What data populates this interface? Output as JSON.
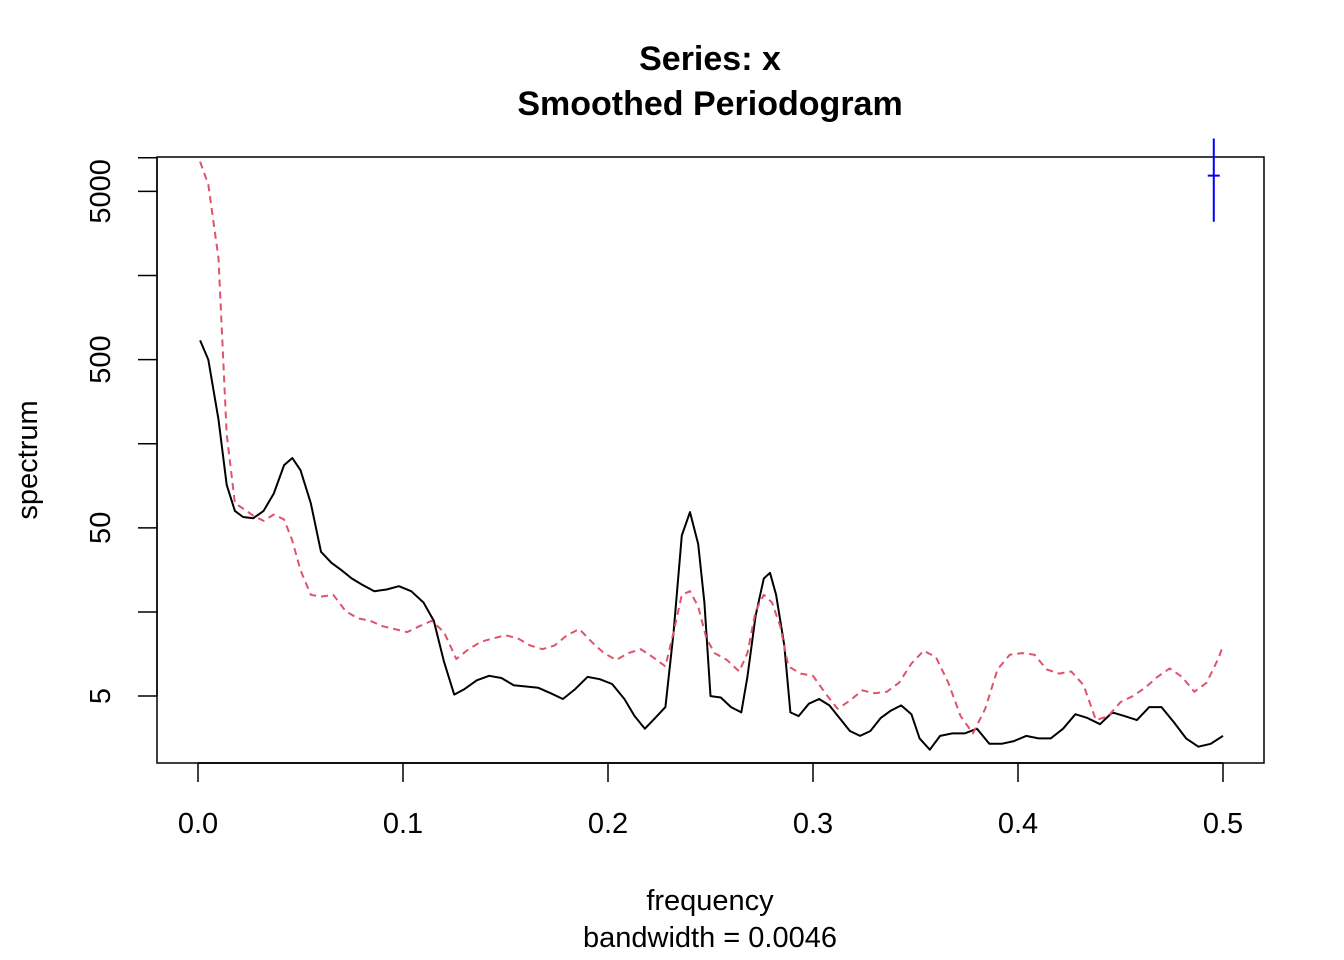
{
  "chart_data": {
    "type": "line",
    "title": "Series: x",
    "subtitle": "Smoothed Periodogram",
    "xlabel": "frequency",
    "sublabel": "bandwidth = 0.0046",
    "ylabel": "spectrum",
    "y_scale": "log",
    "xlim": [
      -0.02,
      0.52
    ],
    "ylim": [
      2.0,
      8000
    ],
    "x_ticks": [
      0.0,
      0.1,
      0.2,
      0.3,
      0.4,
      0.5
    ],
    "x_tick_labels": [
      "0.0",
      "0.1",
      "0.2",
      "0.3",
      "0.4",
      "0.5"
    ],
    "y_major_ticks": [
      5,
      50,
      500,
      5000
    ],
    "y_tick_labels": [
      "5",
      "50",
      "500",
      "5000"
    ],
    "y_minor_ticks": [
      15.8,
      158,
      1580
    ],
    "series": [
      {
        "color": "#000000",
        "dash": "solid",
        "points": [
          [
            0.001,
            650
          ],
          [
            0.005,
            500
          ],
          [
            0.01,
            220
          ],
          [
            0.014,
            90
          ],
          [
            0.018,
            63
          ],
          [
            0.022,
            58
          ],
          [
            0.027,
            57
          ],
          [
            0.032,
            63
          ],
          [
            0.037,
            80
          ],
          [
            0.042,
            118
          ],
          [
            0.046,
            130
          ],
          [
            0.05,
            110
          ],
          [
            0.055,
            70
          ],
          [
            0.06,
            36
          ],
          [
            0.065,
            31
          ],
          [
            0.07,
            28
          ],
          [
            0.075,
            25
          ],
          [
            0.08,
            23
          ],
          [
            0.086,
            21
          ],
          [
            0.092,
            21.5
          ],
          [
            0.098,
            22.5
          ],
          [
            0.104,
            21
          ],
          [
            0.11,
            18
          ],
          [
            0.115,
            14
          ],
          [
            0.12,
            8
          ],
          [
            0.125,
            5.1
          ],
          [
            0.13,
            5.5
          ],
          [
            0.136,
            6.2
          ],
          [
            0.142,
            6.6
          ],
          [
            0.148,
            6.4
          ],
          [
            0.154,
            5.8
          ],
          [
            0.16,
            5.7
          ],
          [
            0.166,
            5.6
          ],
          [
            0.172,
            5.2
          ],
          [
            0.178,
            4.8
          ],
          [
            0.184,
            5.5
          ],
          [
            0.19,
            6.5
          ],
          [
            0.196,
            6.3
          ],
          [
            0.202,
            5.9
          ],
          [
            0.208,
            4.8
          ],
          [
            0.213,
            3.8
          ],
          [
            0.218,
            3.2
          ],
          [
            0.223,
            3.7
          ],
          [
            0.228,
            4.3
          ],
          [
            0.232,
            12
          ],
          [
            0.236,
            45
          ],
          [
            0.24,
            62
          ],
          [
            0.244,
            40
          ],
          [
            0.247,
            18
          ],
          [
            0.25,
            5.0
          ],
          [
            0.255,
            4.9
          ],
          [
            0.26,
            4.3
          ],
          [
            0.265,
            4.0
          ],
          [
            0.268,
            6.5
          ],
          [
            0.272,
            15
          ],
          [
            0.276,
            25
          ],
          [
            0.279,
            27
          ],
          [
            0.282,
            20
          ],
          [
            0.286,
            10
          ],
          [
            0.289,
            4.0
          ],
          [
            0.293,
            3.8
          ],
          [
            0.298,
            4.5
          ],
          [
            0.303,
            4.8
          ],
          [
            0.308,
            4.4
          ],
          [
            0.313,
            3.7
          ],
          [
            0.318,
            3.1
          ],
          [
            0.323,
            2.9
          ],
          [
            0.328,
            3.1
          ],
          [
            0.333,
            3.7
          ],
          [
            0.338,
            4.1
          ],
          [
            0.343,
            4.4
          ],
          [
            0.348,
            3.9
          ],
          [
            0.352,
            2.8
          ],
          [
            0.357,
            2.4
          ],
          [
            0.362,
            2.9
          ],
          [
            0.368,
            3.0
          ],
          [
            0.374,
            3.0
          ],
          [
            0.38,
            3.2
          ],
          [
            0.386,
            2.6
          ],
          [
            0.392,
            2.6
          ],
          [
            0.398,
            2.7
          ],
          [
            0.404,
            2.9
          ],
          [
            0.41,
            2.8
          ],
          [
            0.416,
            2.8
          ],
          [
            0.422,
            3.2
          ],
          [
            0.428,
            3.9
          ],
          [
            0.434,
            3.7
          ],
          [
            0.44,
            3.4
          ],
          [
            0.446,
            4.0
          ],
          [
            0.452,
            3.8
          ],
          [
            0.458,
            3.6
          ],
          [
            0.464,
            4.3
          ],
          [
            0.47,
            4.3
          ],
          [
            0.476,
            3.5
          ],
          [
            0.482,
            2.8
          ],
          [
            0.488,
            2.5
          ],
          [
            0.494,
            2.6
          ],
          [
            0.5,
            2.9
          ]
        ]
      },
      {
        "color": "#df536b",
        "dash": "dashed",
        "points": [
          [
            0.001,
            7500
          ],
          [
            0.005,
            5500
          ],
          [
            0.01,
            2000
          ],
          [
            0.014,
            180
          ],
          [
            0.018,
            70
          ],
          [
            0.022,
            65
          ],
          [
            0.027,
            59
          ],
          [
            0.032,
            55
          ],
          [
            0.037,
            60
          ],
          [
            0.042,
            56
          ],
          [
            0.046,
            42
          ],
          [
            0.05,
            28
          ],
          [
            0.055,
            20
          ],
          [
            0.06,
            19.5
          ],
          [
            0.066,
            20
          ],
          [
            0.072,
            16
          ],
          [
            0.078,
            14.5
          ],
          [
            0.084,
            14
          ],
          [
            0.09,
            13
          ],
          [
            0.096,
            12.5
          ],
          [
            0.102,
            12
          ],
          [
            0.108,
            13
          ],
          [
            0.114,
            14
          ],
          [
            0.12,
            12
          ],
          [
            0.126,
            8.3
          ],
          [
            0.132,
            9.5
          ],
          [
            0.138,
            10.5
          ],
          [
            0.144,
            11
          ],
          [
            0.15,
            11.5
          ],
          [
            0.156,
            11
          ],
          [
            0.162,
            10
          ],
          [
            0.168,
            9.5
          ],
          [
            0.174,
            10
          ],
          [
            0.18,
            11.5
          ],
          [
            0.186,
            12.5
          ],
          [
            0.192,
            10.5
          ],
          [
            0.198,
            9.0
          ],
          [
            0.204,
            8.2
          ],
          [
            0.21,
            9.0
          ],
          [
            0.216,
            9.5
          ],
          [
            0.222,
            8.5
          ],
          [
            0.228,
            7.5
          ],
          [
            0.232,
            12
          ],
          [
            0.236,
            20
          ],
          [
            0.24,
            21
          ],
          [
            0.244,
            17
          ],
          [
            0.248,
            11
          ],
          [
            0.252,
            9
          ],
          [
            0.258,
            8.2
          ],
          [
            0.264,
            7
          ],
          [
            0.268,
            9
          ],
          [
            0.272,
            16
          ],
          [
            0.276,
            20
          ],
          [
            0.28,
            18
          ],
          [
            0.284,
            13
          ],
          [
            0.288,
            7.5
          ],
          [
            0.294,
            6.8
          ],
          [
            0.3,
            6.6
          ],
          [
            0.306,
            5.2
          ],
          [
            0.312,
            4.2
          ],
          [
            0.318,
            4.7
          ],
          [
            0.324,
            5.4
          ],
          [
            0.33,
            5.2
          ],
          [
            0.336,
            5.3
          ],
          [
            0.342,
            6.0
          ],
          [
            0.348,
            7.8
          ],
          [
            0.354,
            9.3
          ],
          [
            0.36,
            8.5
          ],
          [
            0.366,
            6.0
          ],
          [
            0.372,
            3.8
          ],
          [
            0.378,
            3.0
          ],
          [
            0.384,
            4.2
          ],
          [
            0.39,
            7.2
          ],
          [
            0.396,
            8.8
          ],
          [
            0.402,
            9.0
          ],
          [
            0.408,
            8.8
          ],
          [
            0.414,
            7.2
          ],
          [
            0.42,
            6.8
          ],
          [
            0.426,
            7.0
          ],
          [
            0.432,
            5.8
          ],
          [
            0.438,
            3.6
          ],
          [
            0.444,
            3.8
          ],
          [
            0.45,
            4.6
          ],
          [
            0.456,
            5.0
          ],
          [
            0.462,
            5.6
          ],
          [
            0.468,
            6.5
          ],
          [
            0.474,
            7.3
          ],
          [
            0.48,
            6.5
          ],
          [
            0.486,
            5.3
          ],
          [
            0.492,
            6.0
          ],
          [
            0.498,
            8.5
          ],
          [
            0.5,
            10
          ]
        ]
      }
    ],
    "ci_bar": {
      "color": "#0000ff",
      "x": 0.4955,
      "center": 6200,
      "low": 3300,
      "high": 10300
    },
    "grid": false,
    "legend": "none"
  }
}
